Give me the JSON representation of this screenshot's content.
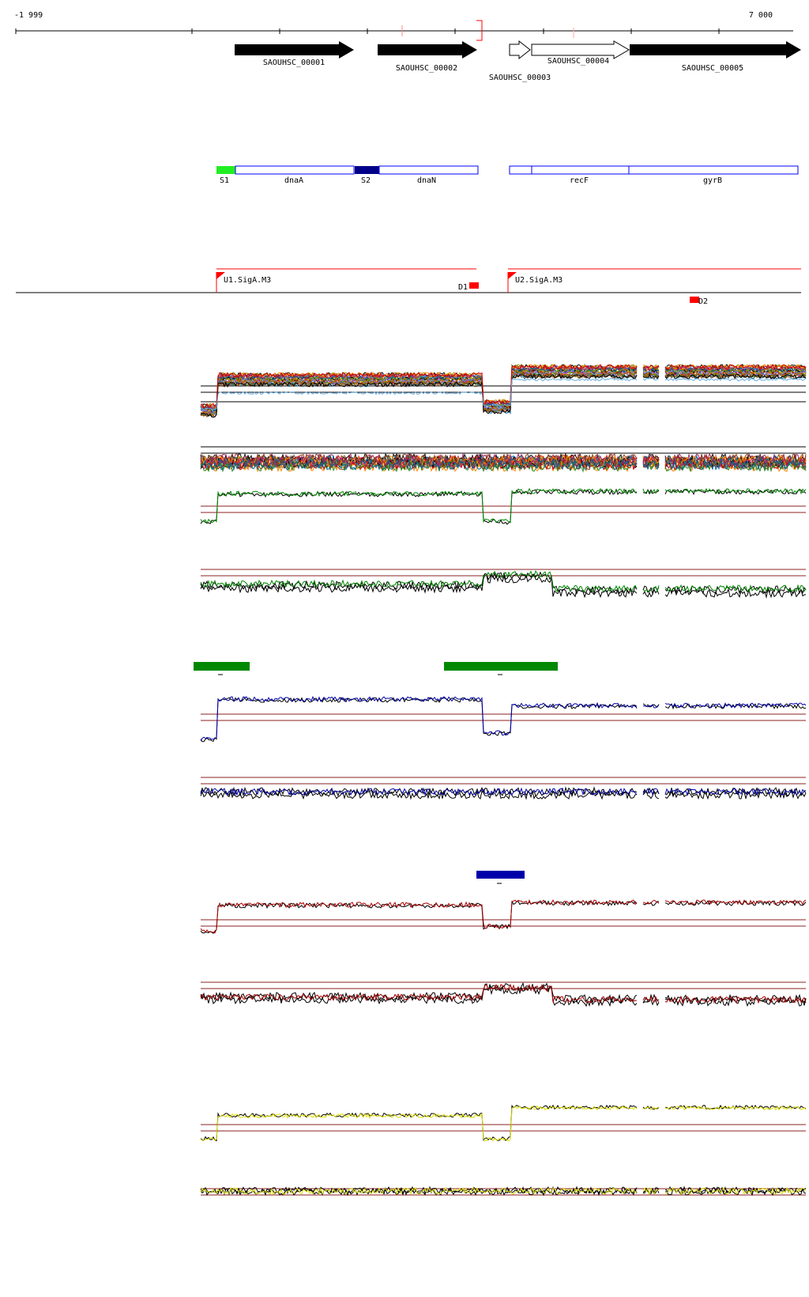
{
  "ruler": {
    "start": "-1 999",
    "end": "7 000"
  },
  "genes": [
    {
      "label": "SAOUHSC_00001",
      "fill": "black"
    },
    {
      "label": "SAOUHSC_00002",
      "fill": "black"
    },
    {
      "label": "SAOUHSC_00003",
      "fill": "white"
    },
    {
      "label": "SAOUHSC_00004",
      "fill": "white"
    },
    {
      "label": "SAOUHSC_00005",
      "fill": "black"
    }
  ],
  "segments": [
    {
      "label": "S1",
      "kind": "promoter",
      "color": "#22ee22"
    },
    {
      "label": "dnaA",
      "kind": "gene"
    },
    {
      "label": "S2",
      "kind": "promoter",
      "color": "#000088"
    },
    {
      "label": "dnaN",
      "kind": "gene"
    },
    {
      "label": "recF",
      "kind": "gene"
    },
    {
      "label": "gyrB",
      "kind": "gene"
    }
  ],
  "features": {
    "upstream": [
      "U1.SigA.M3",
      "U2.SigA.M3"
    ],
    "downstream": [
      "D1",
      "D2"
    ]
  },
  "colors": {
    "green": "#008800",
    "blue": "#0000aa",
    "red": "#aa0000",
    "yellow": "#dddd00",
    "threshold": "#8b2222",
    "marker": "#ff0000"
  },
  "bars": [
    "green",
    "blue"
  ]
}
